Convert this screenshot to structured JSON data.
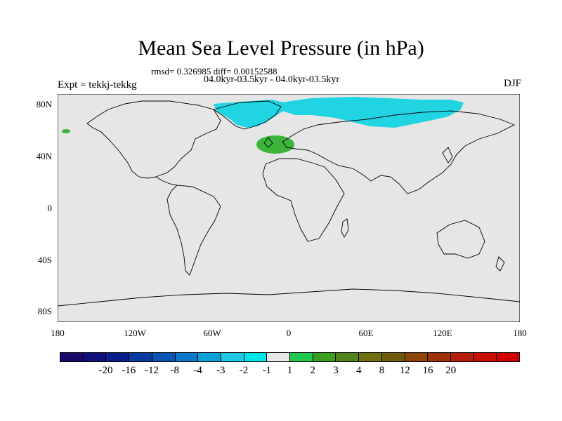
{
  "title": "Mean Sea Level Pressure (in hPa)",
  "stats": "rmsd= 0.326985 diff= 0.00152588",
  "period": "04.0kyr-03.5kyr - 04.0kyr-03.5kyr",
  "expt": "Expt = tekkj-tekkg",
  "season": "DJF",
  "lat_labels": [
    "80N",
    "40N",
    "0",
    "40S",
    "80S"
  ],
  "lon_labels": [
    "180",
    "120W",
    "60W",
    "0",
    "60E",
    "120E",
    "180"
  ],
  "colorbar": {
    "colors": [
      "#1a0a6e",
      "#10107e",
      "#0a1e8c",
      "#0a3aa0",
      "#0a55b4",
      "#0a78c8",
      "#0aa0d8",
      "#20c8e6",
      "#00e6e6",
      "#e6e6e6",
      "#1ec84a",
      "#3c9e1e",
      "#50821a",
      "#6e7010",
      "#6e5a0a",
      "#8c460a",
      "#a0320a",
      "#b41e0a",
      "#c81000",
      "#d20000"
    ],
    "labels": [
      "-20",
      "-16",
      "-12",
      "-8",
      "-4",
      "-3",
      "-2",
      "-1",
      "1",
      "2",
      "3",
      "4",
      "8",
      "12",
      "16",
      "20"
    ]
  },
  "colors": {
    "background": "#e6e6e6",
    "negative_anomaly": "#20d4e2",
    "positive_anomaly": "#3cb43c",
    "coast": "#000000"
  }
}
